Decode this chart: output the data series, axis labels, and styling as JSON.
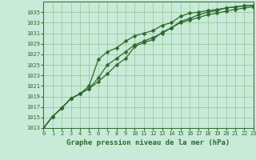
{
  "xlabel": "Graphe pression niveau de la mer (hPa)",
  "x_values": [
    0,
    1,
    2,
    3,
    4,
    5,
    6,
    7,
    8,
    9,
    10,
    11,
    12,
    13,
    14,
    15,
    16,
    17,
    18,
    19,
    20,
    21,
    22,
    23
  ],
  "line1": [
    1013.0,
    1015.2,
    1016.8,
    1018.6,
    1019.5,
    1020.5,
    1021.8,
    1023.3,
    1025.0,
    1026.2,
    1028.5,
    1029.2,
    1029.8,
    1031.2,
    1032.0,
    1033.2,
    1033.8,
    1034.5,
    1035.0,
    1035.3,
    1035.8,
    1036.0,
    1036.2,
    1036.3
  ],
  "line2": [
    1013.0,
    1015.2,
    1016.8,
    1018.6,
    1019.5,
    1020.5,
    1022.5,
    1025.0,
    1026.2,
    1027.5,
    1028.8,
    1029.5,
    1030.2,
    1031.0,
    1032.0,
    1033.0,
    1033.5,
    1034.0,
    1034.5,
    1034.8,
    1035.2,
    1035.5,
    1035.8,
    1036.0
  ],
  "line3": [
    1013.0,
    1015.2,
    1016.8,
    1018.6,
    1019.5,
    1021.0,
    1026.0,
    1027.5,
    1028.2,
    1029.5,
    1030.5,
    1031.0,
    1031.5,
    1032.5,
    1033.0,
    1034.2,
    1034.8,
    1035.0,
    1035.3,
    1035.5,
    1035.8,
    1036.0,
    1036.2,
    1036.3
  ],
  "line_color": "#2d6a2d",
  "bg_color": "#c8ead8",
  "grid_color": "#88bb88",
  "ylim_min": 1013,
  "ylim_max": 1037,
  "xlim_min": 0,
  "xlim_max": 23,
  "yticks": [
    1013,
    1015,
    1017,
    1019,
    1021,
    1023,
    1025,
    1027,
    1029,
    1031,
    1033,
    1035
  ],
  "xticks": [
    0,
    1,
    2,
    3,
    4,
    5,
    6,
    7,
    8,
    9,
    10,
    11,
    12,
    13,
    14,
    15,
    16,
    17,
    18,
    19,
    20,
    21,
    22,
    23
  ],
  "xlabel_fontsize": 6.5,
  "tick_fontsize": 5.0,
  "line_width": 0.9,
  "marker_size": 2.5
}
